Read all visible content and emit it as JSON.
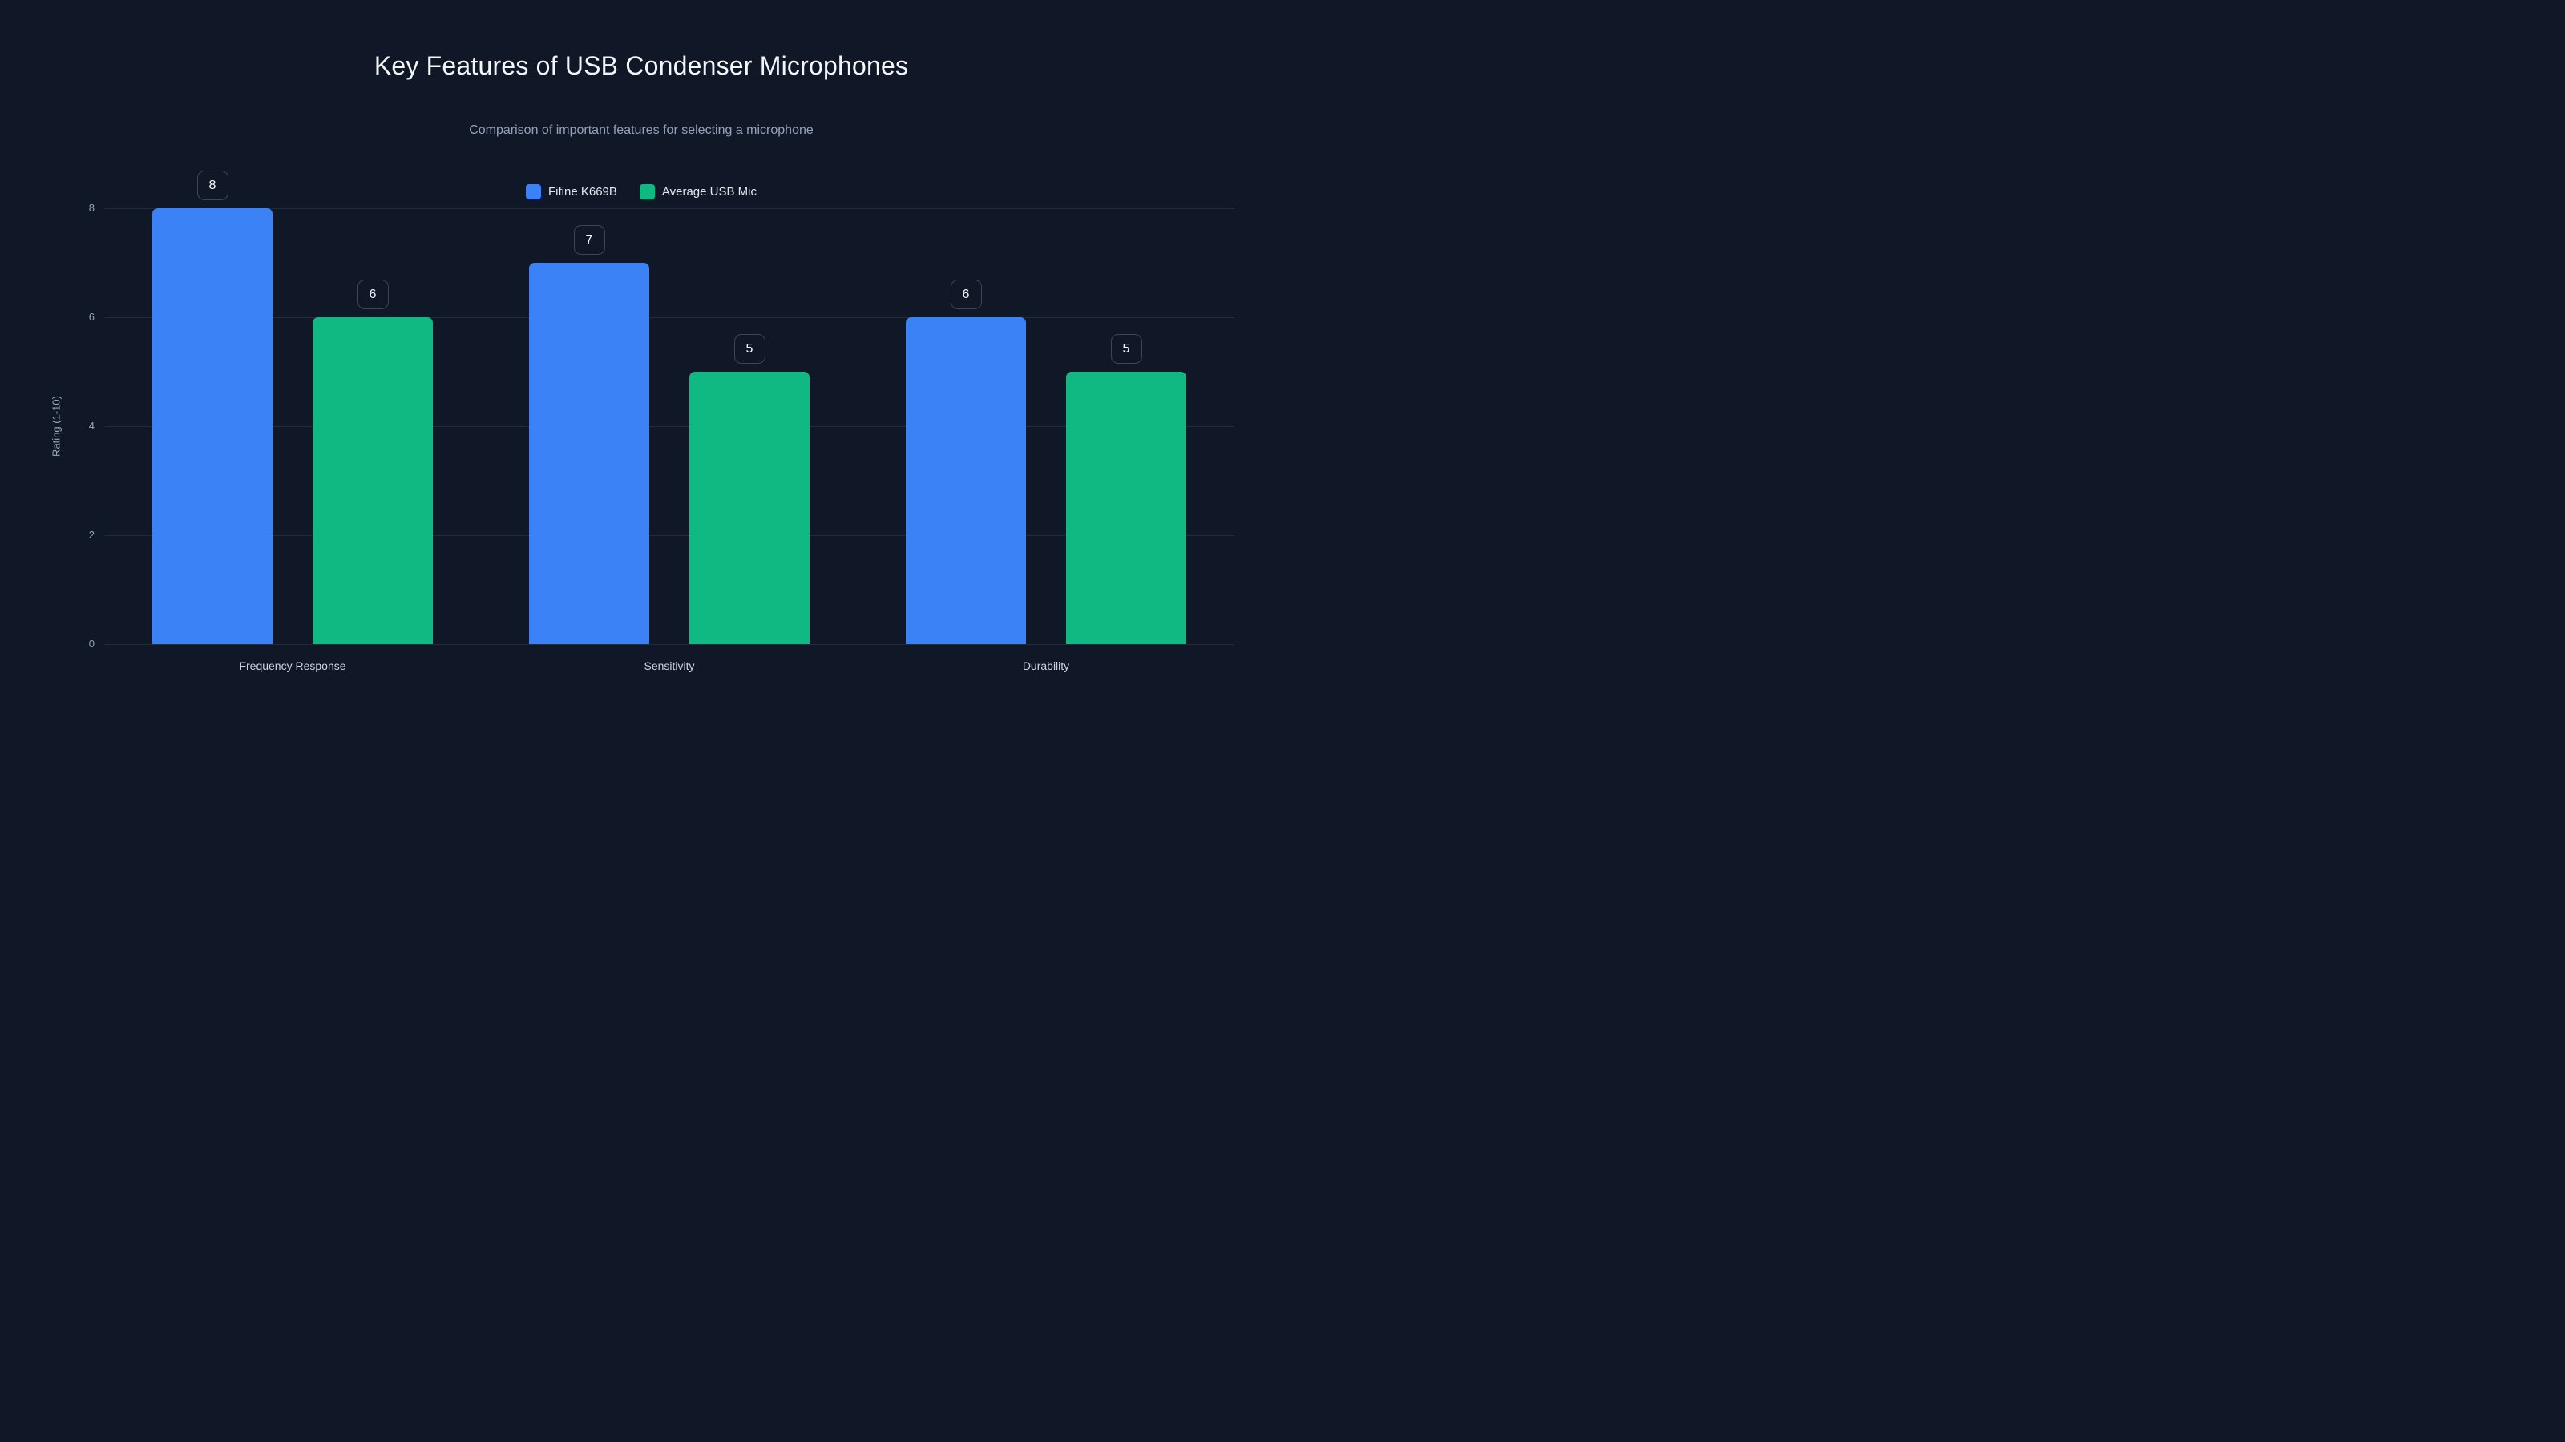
{
  "page": {
    "background_color": "#101827"
  },
  "chart_data": {
    "type": "bar",
    "title": "Key Features of USB Condenser Microphones",
    "subtitle": "Comparison of important features for selecting a microphone",
    "xlabel": "",
    "ylabel": "Rating (1-10)",
    "categories": [
      "Frequency Response",
      "Sensitivity",
      "Durability"
    ],
    "series": [
      {
        "name": "Fifine K669B",
        "color": "#3b82f6",
        "values": [
          8,
          7,
          6
        ]
      },
      {
        "name": "Average USB Mic",
        "color": "#10b981",
        "values": [
          6,
          5,
          5
        ]
      }
    ],
    "value_labels_shown": true,
    "y_ticks": [
      0,
      2,
      4,
      6,
      8
    ],
    "ylim": [
      0,
      8
    ],
    "grid": true,
    "legend_position": "top"
  },
  "style": {
    "title_color": "#f3f6fb",
    "subtitle_color": "#94a3b8",
    "tick_label_color": "#94a3b8",
    "category_label_color": "#cbd5e1",
    "legend_text_color": "#e2e8f0",
    "grid_color": "rgba(148,163,184,0.14)",
    "badge_border_color": "#3b4557",
    "badge_text_color": "#f8fafc"
  }
}
